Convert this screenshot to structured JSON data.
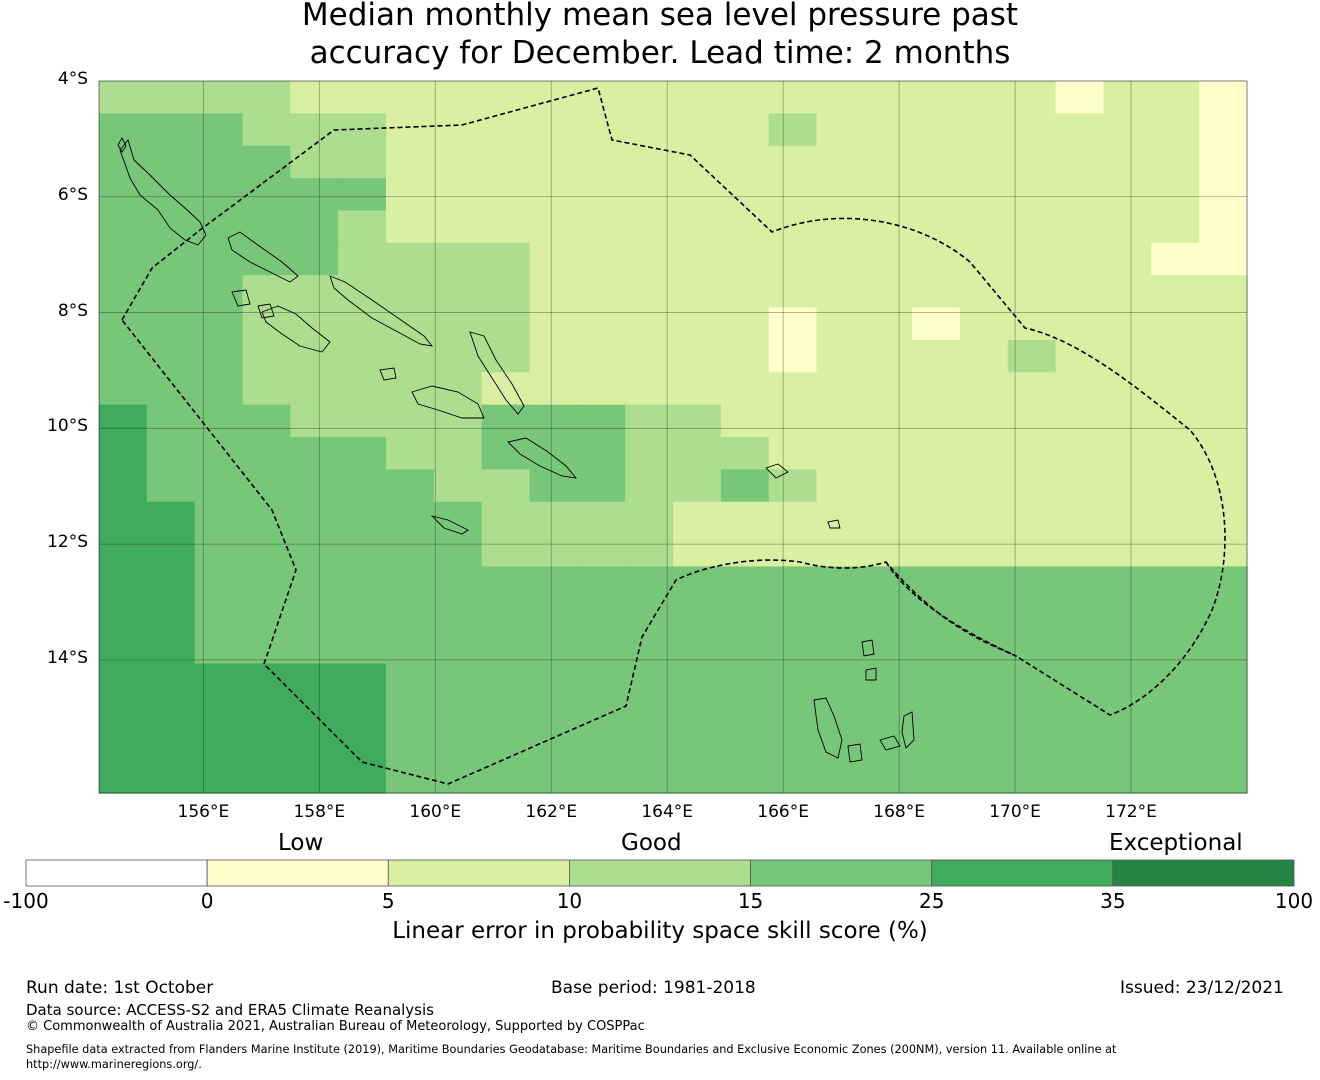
{
  "title": {
    "line1": "Median monthly mean sea level pressure past",
    "line2": "accuracy for December. Lead time: 2 months"
  },
  "map": {
    "lat_labels": [
      "4°S",
      "6°S",
      "8°S",
      "10°S",
      "12°S",
      "14°S"
    ],
    "lon_labels": [
      "156°E",
      "158°E",
      "160°E",
      "162°E",
      "164°E",
      "166°E",
      "168°E",
      "170°E",
      "172°E"
    ],
    "extent": {
      "lon_min": 154.2,
      "lon_max": 174.0,
      "lat_min": -16.3,
      "lat_max": -4.0
    },
    "palette": [
      "#ffffff",
      "#ffffcc",
      "#d9f0a3",
      "#addd8e",
      "#78c679",
      "#41ab5d",
      "#238443"
    ],
    "grid_columns": 24,
    "grid_rows": 22,
    "grid_category_rows": [
      "333322222222222222221221",
      "444333222222223222222221",
      "444433222222222222222221",
      "444444222222222222222221",
      "444443222222222222222221",
      "444443333222222222222211",
      "444333333222222222222222",
      "444333333222221221222222",
      "444333333222221222232222",
      "444333332222222222222222",
      "544433334443322222222222",
      "544444334443332222222222",
      "544444433443343222222222",
      "554444443333222222222222",
      "554444443333222222222222",
      "554444444444444444444444",
      "554444444444444444444444",
      "554444444444444444444444",
      "555555444444444444444444",
      "555555444444444444444444",
      "555555444444444444444444",
      "555555444444444444444444"
    ]
  },
  "category_labels": {
    "low": "Low",
    "good": "Good",
    "exceptional": "Exceptional"
  },
  "legend": {
    "colors": [
      "#ffffff",
      "#ffffcc",
      "#d9f0a3",
      "#addd8e",
      "#78c679",
      "#41ab5d",
      "#238443"
    ],
    "ticks": [
      "-100",
      "0",
      "5",
      "10",
      "15",
      "25",
      "35",
      "100"
    ],
    "title": "Linear error in probability space skill score (%)"
  },
  "footer": {
    "run_date": "Run date: 1st October",
    "base_period": "Base period: 1981-2018",
    "issued": "Issued: 23/12/2021",
    "data_source": "Data source: ACCESS-S2 and ERA5 Climate Reanalysis",
    "copyright": "© Commonwealth of Australia 2021, Australian Bureau of Meteorology, Supported by COSPPac",
    "shapefile_line1": "Shapefile data extracted from Flanders Marine Institute (2019), Maritime Boundaries Geodatabase: Maritime Boundaries and Exclusive Economic Zones (200NM), version 11. Available online at",
    "shapefile_line2": "http://www.marineregions.org/."
  }
}
